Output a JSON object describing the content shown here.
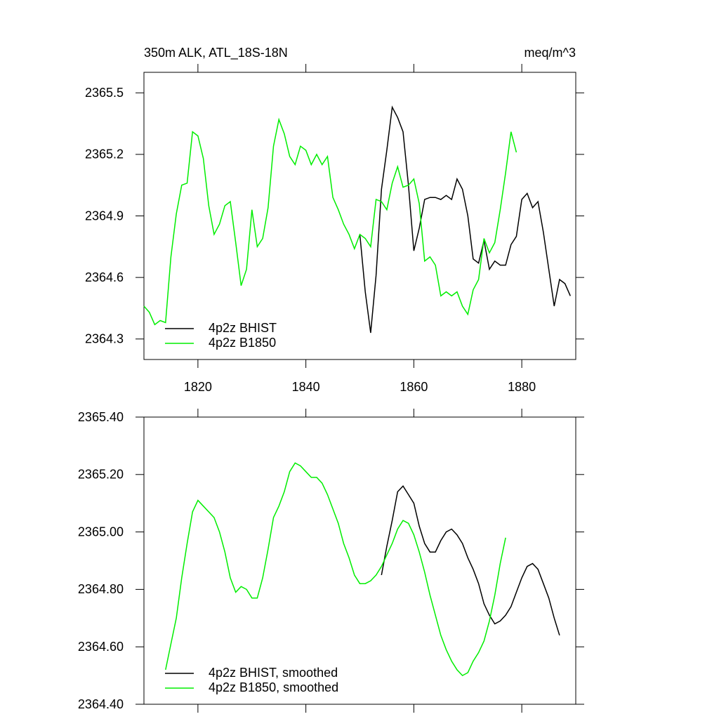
{
  "chart_data": [
    {
      "type": "line",
      "title": "350m ALK, ATL_18S-18N",
      "units": "meq/m^3",
      "xlim": [
        1810,
        1890
      ],
      "xticks": [
        1820,
        1840,
        1860,
        1880
      ],
      "ylim": [
        2364.2,
        2365.6
      ],
      "yticks": [
        2364.3,
        2364.6,
        2364.9,
        2365.2,
        2365.5
      ],
      "legend": "lower left",
      "series": [
        {
          "name": "4p2z BHIST",
          "color": "#000000",
          "x": [
            1850,
            1851,
            1852,
            1853,
            1854,
            1855,
            1856,
            1857,
            1858,
            1859,
            1860,
            1861,
            1862,
            1863,
            1864,
            1865,
            1866,
            1867,
            1868,
            1869,
            1870,
            1871,
            1872,
            1873,
            1874,
            1875,
            1876,
            1877,
            1878,
            1879,
            1880,
            1881,
            1882,
            1883,
            1884,
            1885,
            1886,
            1887,
            1888,
            1889
          ],
          "values": [
            2364.81,
            2364.53,
            2364.33,
            2364.61,
            2365.03,
            2365.22,
            2365.43,
            2365.38,
            2365.31,
            2365.05,
            2364.73,
            2364.84,
            2364.98,
            2364.99,
            2364.99,
            2364.98,
            2365.0,
            2364.98,
            2365.08,
            2365.03,
            2364.9,
            2364.69,
            2364.67,
            2364.78,
            2364.64,
            2364.68,
            2364.66,
            2364.66,
            2364.76,
            2364.8,
            2364.98,
            2365.01,
            2364.94,
            2364.97,
            2364.82,
            2364.64,
            2364.46,
            2364.59,
            2364.57,
            2364.51
          ]
        },
        {
          "name": "4p2z B1850",
          "color": "#00ee00",
          "x": [
            1810,
            1811,
            1812,
            1813,
            1814,
            1815,
            1816,
            1817,
            1818,
            1819,
            1820,
            1821,
            1822,
            1823,
            1824,
            1825,
            1826,
            1827,
            1828,
            1829,
            1830,
            1831,
            1832,
            1833,
            1834,
            1835,
            1836,
            1837,
            1838,
            1839,
            1840,
            1841,
            1842,
            1843,
            1844,
            1845,
            1846,
            1847,
            1848,
            1849,
            1850,
            1851,
            1852,
            1853,
            1854,
            1855,
            1856,
            1857,
            1858,
            1859,
            1860,
            1861,
            1862,
            1863,
            1864,
            1865,
            1866,
            1867,
            1868,
            1869,
            1870,
            1871,
            1872,
            1873,
            1874,
            1875,
            1876,
            1877,
            1878,
            1879
          ],
          "values": [
            2364.46,
            2364.43,
            2364.37,
            2364.39,
            2364.38,
            2364.7,
            2364.91,
            2365.05,
            2365.06,
            2365.31,
            2365.29,
            2365.18,
            2364.95,
            2364.81,
            2364.86,
            2364.95,
            2364.97,
            2364.77,
            2364.56,
            2364.64,
            2364.93,
            2364.75,
            2364.79,
            2364.94,
            2365.24,
            2365.37,
            2365.3,
            2365.19,
            2365.15,
            2365.24,
            2365.22,
            2365.15,
            2365.2,
            2365.15,
            2365.19,
            2364.99,
            2364.93,
            2364.86,
            2364.81,
            2364.74,
            2364.81,
            2364.79,
            2364.75,
            2364.98,
            2364.97,
            2364.93,
            2365.06,
            2365.14,
            2365.04,
            2365.05,
            2365.08,
            2364.96,
            2364.68,
            2364.7,
            2364.66,
            2364.51,
            2364.53,
            2364.51,
            2364.53,
            2364.46,
            2364.42,
            2364.54,
            2364.59,
            2364.79,
            2364.72,
            2364.77,
            2364.93,
            2365.11,
            2365.31,
            2365.21
          ]
        }
      ]
    },
    {
      "type": "line",
      "xlim": [
        1810,
        1890
      ],
      "xticks": [
        1820,
        1840,
        1860,
        1880
      ],
      "ylim": [
        2364.4,
        2365.4
      ],
      "yticks": [
        {
          "value": 2364.4,
          "label": "2364.40"
        },
        {
          "value": 2364.6,
          "label": "2364.60"
        },
        {
          "value": 2364.8,
          "label": "2364.80"
        },
        {
          "value": 2365.0,
          "label": "2365.00"
        },
        {
          "value": 2365.2,
          "label": "2365.20"
        },
        {
          "value": 2365.4,
          "label": "2365.40"
        }
      ],
      "legend": "lower left",
      "series": [
        {
          "name": "4p2z BHIST, smoothed",
          "color": "#000000",
          "x": [
            1854,
            1855,
            1856,
            1857,
            1858,
            1859,
            1860,
            1861,
            1862,
            1863,
            1864,
            1865,
            1866,
            1867,
            1868,
            1869,
            1870,
            1871,
            1872,
            1873,
            1874,
            1875,
            1876,
            1877,
            1878,
            1879,
            1880,
            1881,
            1882,
            1883,
            1884,
            1885,
            1886,
            1887
          ],
          "values": [
            2364.85,
            2364.95,
            2365.04,
            2365.14,
            2365.16,
            2365.13,
            2365.1,
            2365.02,
            2364.96,
            2364.93,
            2364.93,
            2364.97,
            2365.0,
            2365.01,
            2364.99,
            2364.96,
            2364.91,
            2364.87,
            2364.82,
            2364.75,
            2364.71,
            2364.68,
            2364.69,
            2364.71,
            2364.74,
            2364.79,
            2364.84,
            2364.88,
            2364.89,
            2364.87,
            2364.82,
            2364.77,
            2364.7,
            2364.64
          ]
        },
        {
          "name": "4p2z B1850, smoothed",
          "color": "#00ee00",
          "x": [
            1814,
            1815,
            1816,
            1817,
            1818,
            1819,
            1820,
            1821,
            1822,
            1823,
            1824,
            1825,
            1826,
            1827,
            1828,
            1829,
            1830,
            1831,
            1832,
            1833,
            1834,
            1835,
            1836,
            1837,
            1838,
            1839,
            1840,
            1841,
            1842,
            1843,
            1844,
            1845,
            1846,
            1847,
            1848,
            1849,
            1850,
            1851,
            1852,
            1853,
            1854,
            1855,
            1856,
            1857,
            1858,
            1859,
            1860,
            1861,
            1862,
            1863,
            1864,
            1865,
            1866,
            1867,
            1868,
            1869,
            1870,
            1871,
            1872,
            1873,
            1874,
            1875,
            1876,
            1877
          ],
          "values": [
            2364.52,
            2364.61,
            2364.7,
            2364.84,
            2364.96,
            2365.07,
            2365.11,
            2365.09,
            2365.07,
            2365.05,
            2365.0,
            2364.93,
            2364.84,
            2364.79,
            2364.81,
            2364.8,
            2364.77,
            2364.77,
            2364.84,
            2364.94,
            2365.05,
            2365.09,
            2365.14,
            2365.21,
            2365.24,
            2365.23,
            2365.21,
            2365.19,
            2365.19,
            2365.17,
            2365.13,
            2365.08,
            2365.03,
            2364.96,
            2364.91,
            2364.85,
            2364.82,
            2364.82,
            2364.83,
            2364.85,
            2364.88,
            2364.92,
            2364.96,
            2365.01,
            2365.04,
            2365.03,
            2364.99,
            2364.93,
            2364.86,
            2364.78,
            2364.71,
            2364.64,
            2364.59,
            2364.55,
            2364.52,
            2364.5,
            2364.51,
            2364.55,
            2364.58,
            2364.62,
            2364.69,
            2364.78,
            2364.89,
            2364.98
          ]
        }
      ]
    }
  ]
}
